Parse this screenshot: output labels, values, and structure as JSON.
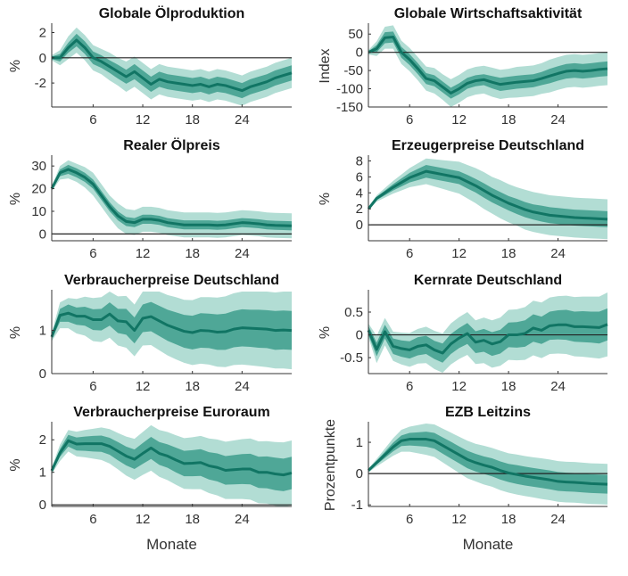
{
  "colors": {
    "median": "#117564",
    "inner_band": "#4fa797",
    "outer_band": "#b2ddd4",
    "zero_line": "#222222"
  },
  "chart_data": [
    {
      "type": "area",
      "title": "Globale Ölproduktion",
      "ylabel": "%",
      "xlabel": "",
      "x_range": [
        1,
        30
      ],
      "xticks": [
        6,
        12,
        18,
        24
      ],
      "yticks": [
        -2,
        0,
        2
      ],
      "ylim": [
        -3.9,
        2.6
      ],
      "median": [
        0,
        0,
        0.8,
        1.4,
        0.8,
        0,
        -0.3,
        -0.7,
        -1.1,
        -1.5,
        -1.1,
        -1.6,
        -2.1,
        -1.7,
        -1.9,
        -2.0,
        -2.1,
        -2.2,
        -2.1,
        -2.3,
        -2.1,
        -2.2,
        -2.4,
        -2.6,
        -2.3,
        -2.1,
        -1.9,
        -1.6,
        -1.4,
        -1.2
      ],
      "inner_halfwidth": [
        0.1,
        0.3,
        0.4,
        0.5,
        0.5,
        0.5,
        0.5,
        0.5,
        0.55,
        0.55,
        0.6,
        0.6,
        0.6,
        0.6,
        0.6,
        0.6,
        0.6,
        0.6,
        0.6,
        0.6,
        0.6,
        0.6,
        0.6,
        0.6,
        0.6,
        0.6,
        0.6,
        0.6,
        0.6,
        0.6
      ],
      "outer_halfwidth": [
        0.2,
        0.6,
        0.9,
        1.0,
        1.0,
        1.0,
        1.0,
        1.1,
        1.1,
        1.2,
        1.2,
        1.2,
        1.2,
        1.2,
        1.2,
        1.2,
        1.2,
        1.2,
        1.2,
        1.2,
        1.2,
        1.2,
        1.2,
        1.2,
        1.2,
        1.2,
        1.2,
        1.2,
        1.2,
        1.2
      ]
    },
    {
      "type": "area",
      "title": "Globale Wirtschaftsaktivität",
      "ylabel": "Index",
      "xlabel": "",
      "x_range": [
        1,
        30
      ],
      "xticks": [
        6,
        12,
        18,
        24
      ],
      "yticks": [
        -150,
        -100,
        -50,
        0,
        50
      ],
      "ylim": [
        -150,
        75
      ],
      "median": [
        0,
        10,
        40,
        42,
        0,
        -20,
        -45,
        -72,
        -78,
        -95,
        -112,
        -100,
        -85,
        -78,
        -75,
        -82,
        -88,
        -85,
        -82,
        -80,
        -78,
        -72,
        -65,
        -58,
        -52,
        -50,
        -52,
        -50,
        -47,
        -45
      ],
      "inner_halfwidth": [
        3,
        10,
        15,
        15,
        15,
        15,
        15,
        15,
        15,
        15,
        15,
        15,
        15,
        15,
        15,
        17,
        18,
        18,
        18,
        18,
        18,
        18,
        20,
        20,
        20,
        20,
        20,
        20,
        20,
        20
      ],
      "outer_halfwidth": [
        6,
        20,
        30,
        32,
        32,
        32,
        32,
        33,
        35,
        35,
        38,
        38,
        38,
        38,
        38,
        40,
        40,
        40,
        42,
        42,
        42,
        42,
        45,
        45,
        45,
        45,
        45,
        45,
        45,
        45
      ]
    },
    {
      "type": "area",
      "title": "Realer Ölpreis",
      "ylabel": "%",
      "xlabel": "",
      "x_range": [
        1,
        30
      ],
      "xticks": [
        6,
        12,
        18,
        24
      ],
      "yticks": [
        0,
        10,
        20,
        30
      ],
      "ylim": [
        -3,
        34
      ],
      "median": [
        20,
        27,
        28.5,
        27,
        25,
        22,
        17,
        12,
        8,
        5.5,
        5,
        6.5,
        6.5,
        6,
        5,
        4.5,
        4,
        4,
        4,
        4,
        3.8,
        4,
        4.5,
        5,
        4.8,
        4.5,
        4,
        3.8,
        3.7,
        3.6
      ],
      "inner_halfwidth": [
        0.5,
        1.5,
        2,
        2,
        2,
        2,
        2,
        2,
        2,
        2,
        2,
        2,
        2,
        2,
        2,
        2,
        2,
        2,
        2,
        2,
        2,
        2,
        2,
        2,
        2,
        2,
        2,
        2,
        2,
        2
      ],
      "outer_halfwidth": [
        1,
        3,
        4,
        4,
        4.5,
        5,
        5,
        5,
        5.5,
        5.5,
        5.5,
        5.5,
        5.5,
        5.5,
        5.5,
        5.5,
        5.5,
        5.5,
        5.5,
        5.5,
        5.5,
        5.5,
        5.5,
        5.5,
        5.5,
        5.5,
        5.5,
        5.5,
        5.5,
        5.5
      ]
    },
    {
      "type": "area",
      "title": "Erzeugerpreise Deutschland",
      "ylabel": "%",
      "xlabel": "",
      "x_range": [
        1,
        30
      ],
      "xticks": [
        6,
        12,
        18,
        24
      ],
      "yticks": [
        0,
        2,
        4,
        6,
        8
      ],
      "ylim": [
        -2,
        8.5
      ],
      "median": [
        2,
        3.3,
        4,
        4.7,
        5.3,
        5.9,
        6.3,
        6.7,
        6.5,
        6.3,
        6.1,
        5.9,
        5.4,
        4.9,
        4.3,
        3.7,
        3.2,
        2.7,
        2.3,
        1.9,
        1.6,
        1.4,
        1.2,
        1.1,
        1.0,
        0.9,
        0.85,
        0.8,
        0.75,
        0.7
      ],
      "inner_halfwidth": [
        0.1,
        0.2,
        0.3,
        0.4,
        0.5,
        0.6,
        0.7,
        0.8,
        0.8,
        0.8,
        0.8,
        0.8,
        0.85,
        0.85,
        0.9,
        0.9,
        0.9,
        0.9,
        0.95,
        0.95,
        0.95,
        1.0,
        1.0,
        1.0,
        1.0,
        1.0,
        1.0,
        1.0,
        1.0,
        1.0
      ],
      "outer_halfwidth": [
        0.2,
        0.4,
        0.6,
        0.8,
        1.0,
        1.2,
        1.4,
        1.6,
        1.7,
        1.8,
        1.9,
        2.0,
        2.1,
        2.2,
        2.3,
        2.3,
        2.4,
        2.4,
        2.4,
        2.5,
        2.5,
        2.5,
        2.5,
        2.5,
        2.5,
        2.5,
        2.5,
        2.5,
        2.5,
        2.5
      ]
    },
    {
      "type": "area",
      "title": "Verbraucherpreise Deutschland",
      "ylabel": "%",
      "xlabel": "",
      "x_range": [
        1,
        30
      ],
      "xticks": [
        6,
        12,
        18,
        24
      ],
      "yticks": [
        0,
        1
      ],
      "ylim": [
        0,
        1.9
      ],
      "median": [
        0.85,
        1.35,
        1.4,
        1.33,
        1.33,
        1.25,
        1.25,
        1.38,
        1.22,
        1.2,
        1.0,
        1.28,
        1.32,
        1.22,
        1.12,
        1.05,
        0.98,
        0.95,
        1.0,
        0.99,
        0.96,
        0.97,
        1.03,
        1.06,
        1.05,
        1.04,
        1.03,
        1.0,
        1.01,
        1.0
      ],
      "inner_halfwidth": [
        0.05,
        0.15,
        0.2,
        0.2,
        0.22,
        0.24,
        0.25,
        0.27,
        0.28,
        0.3,
        0.3,
        0.32,
        0.34,
        0.35,
        0.36,
        0.37,
        0.38,
        0.39,
        0.4,
        0.4,
        0.41,
        0.42,
        0.42,
        0.43,
        0.43,
        0.44,
        0.44,
        0.45,
        0.45,
        0.45
      ],
      "outer_halfwidth": [
        0.1,
        0.3,
        0.35,
        0.4,
        0.45,
        0.5,
        0.52,
        0.55,
        0.57,
        0.6,
        0.6,
        0.63,
        0.66,
        0.68,
        0.7,
        0.72,
        0.73,
        0.75,
        0.77,
        0.78,
        0.8,
        0.82,
        0.83,
        0.85,
        0.86,
        0.87,
        0.88,
        0.88,
        0.89,
        0.9
      ]
    },
    {
      "type": "area",
      "title": "Kernrate  Deutschland",
      "ylabel": "%",
      "xlabel": "",
      "x_range": [
        1,
        30
      ],
      "xticks": [
        6,
        12,
        18,
        24
      ],
      "yticks": [
        -0.5,
        0,
        0.5
      ],
      "ylim": [
        -0.85,
        0.95
      ],
      "median": [
        0.1,
        -0.32,
        0.07,
        -0.25,
        -0.3,
        -0.33,
        -0.25,
        -0.22,
        -0.33,
        -0.4,
        -0.2,
        -0.07,
        0.03,
        -0.16,
        -0.12,
        -0.2,
        -0.15,
        0,
        0,
        0.03,
        0.15,
        0.1,
        0.2,
        0.22,
        0.22,
        0.18,
        0.18,
        0.17,
        0.16,
        0.23
      ],
      "inner_halfwidth": [
        0.1,
        0.15,
        0.15,
        0.17,
        0.18,
        0.19,
        0.2,
        0.2,
        0.2,
        0.21,
        0.22,
        0.22,
        0.23,
        0.24,
        0.25,
        0.26,
        0.26,
        0.27,
        0.28,
        0.29,
        0.3,
        0.3,
        0.31,
        0.32,
        0.33,
        0.33,
        0.34,
        0.34,
        0.35,
        0.35
      ],
      "outer_halfwidth": [
        0.15,
        0.3,
        0.3,
        0.32,
        0.35,
        0.37,
        0.38,
        0.4,
        0.42,
        0.43,
        0.45,
        0.46,
        0.47,
        0.48,
        0.5,
        0.52,
        0.53,
        0.55,
        0.56,
        0.58,
        0.6,
        0.61,
        0.62,
        0.63,
        0.64,
        0.65,
        0.66,
        0.67,
        0.68,
        0.7
      ]
    },
    {
      "type": "area",
      "title": "Verbraucherpreise Euroraum",
      "ylabel": "%",
      "xlabel": "Monate",
      "x_range": [
        1,
        30
      ],
      "xticks": [
        6,
        12,
        18,
        24
      ],
      "yticks": [
        0,
        1,
        2
      ],
      "ylim": [
        -0.05,
        2.5
      ],
      "median": [
        1.05,
        1.6,
        1.97,
        1.87,
        1.88,
        1.88,
        1.88,
        1.8,
        1.65,
        1.5,
        1.4,
        1.58,
        1.75,
        1.58,
        1.5,
        1.38,
        1.27,
        1.28,
        1.3,
        1.2,
        1.15,
        1.06,
        1.08,
        1.1,
        1.1,
        1.0,
        1.0,
        0.95,
        0.92,
        0.98
      ],
      "inner_halfwidth": [
        0.05,
        0.12,
        0.18,
        0.2,
        0.22,
        0.24,
        0.25,
        0.26,
        0.28,
        0.29,
        0.3,
        0.32,
        0.34,
        0.35,
        0.36,
        0.38,
        0.39,
        0.4,
        0.41,
        0.42,
        0.43,
        0.44,
        0.45,
        0.46,
        0.47,
        0.48,
        0.49,
        0.5,
        0.5,
        0.5
      ],
      "outer_halfwidth": [
        0.1,
        0.25,
        0.33,
        0.38,
        0.42,
        0.46,
        0.5,
        0.53,
        0.56,
        0.6,
        0.63,
        0.66,
        0.7,
        0.72,
        0.74,
        0.76,
        0.78,
        0.8,
        0.82,
        0.84,
        0.86,
        0.88,
        0.9,
        0.92,
        0.94,
        0.95,
        0.96,
        0.98,
        1.0,
        1.0
      ]
    },
    {
      "type": "area",
      "title": "EZB Leitzins",
      "ylabel": "Prozentpunkte",
      "xlabel": "Monate",
      "x_range": [
        1,
        30
      ],
      "xticks": [
        6,
        12,
        18,
        24
      ],
      "yticks": [
        -1,
        0,
        1
      ],
      "ylim": [
        -1.05,
        1.6
      ],
      "median": [
        0.1,
        0.35,
        0.6,
        0.85,
        1.05,
        1.1,
        1.1,
        1.1,
        1.05,
        0.9,
        0.75,
        0.6,
        0.45,
        0.35,
        0.27,
        0.2,
        0.1,
        0.02,
        -0.03,
        -0.08,
        -0.12,
        -0.16,
        -0.2,
        -0.25,
        -0.27,
        -0.28,
        -0.3,
        -0.32,
        -0.33,
        -0.34
      ],
      "inner_halfwidth": [
        0.03,
        0.06,
        0.1,
        0.14,
        0.17,
        0.2,
        0.22,
        0.24,
        0.25,
        0.26,
        0.27,
        0.27,
        0.28,
        0.28,
        0.28,
        0.29,
        0.29,
        0.29,
        0.3,
        0.3,
        0.3,
        0.3,
        0.3,
        0.3,
        0.3,
        0.3,
        0.3,
        0.3,
        0.3,
        0.3
      ],
      "outer_halfwidth": [
        0.06,
        0.12,
        0.2,
        0.28,
        0.35,
        0.4,
        0.45,
        0.5,
        0.52,
        0.54,
        0.56,
        0.58,
        0.6,
        0.6,
        0.62,
        0.62,
        0.63,
        0.63,
        0.64,
        0.64,
        0.64,
        0.65,
        0.65,
        0.65,
        0.65,
        0.65,
        0.65,
        0.65,
        0.65,
        0.65
      ]
    }
  ]
}
